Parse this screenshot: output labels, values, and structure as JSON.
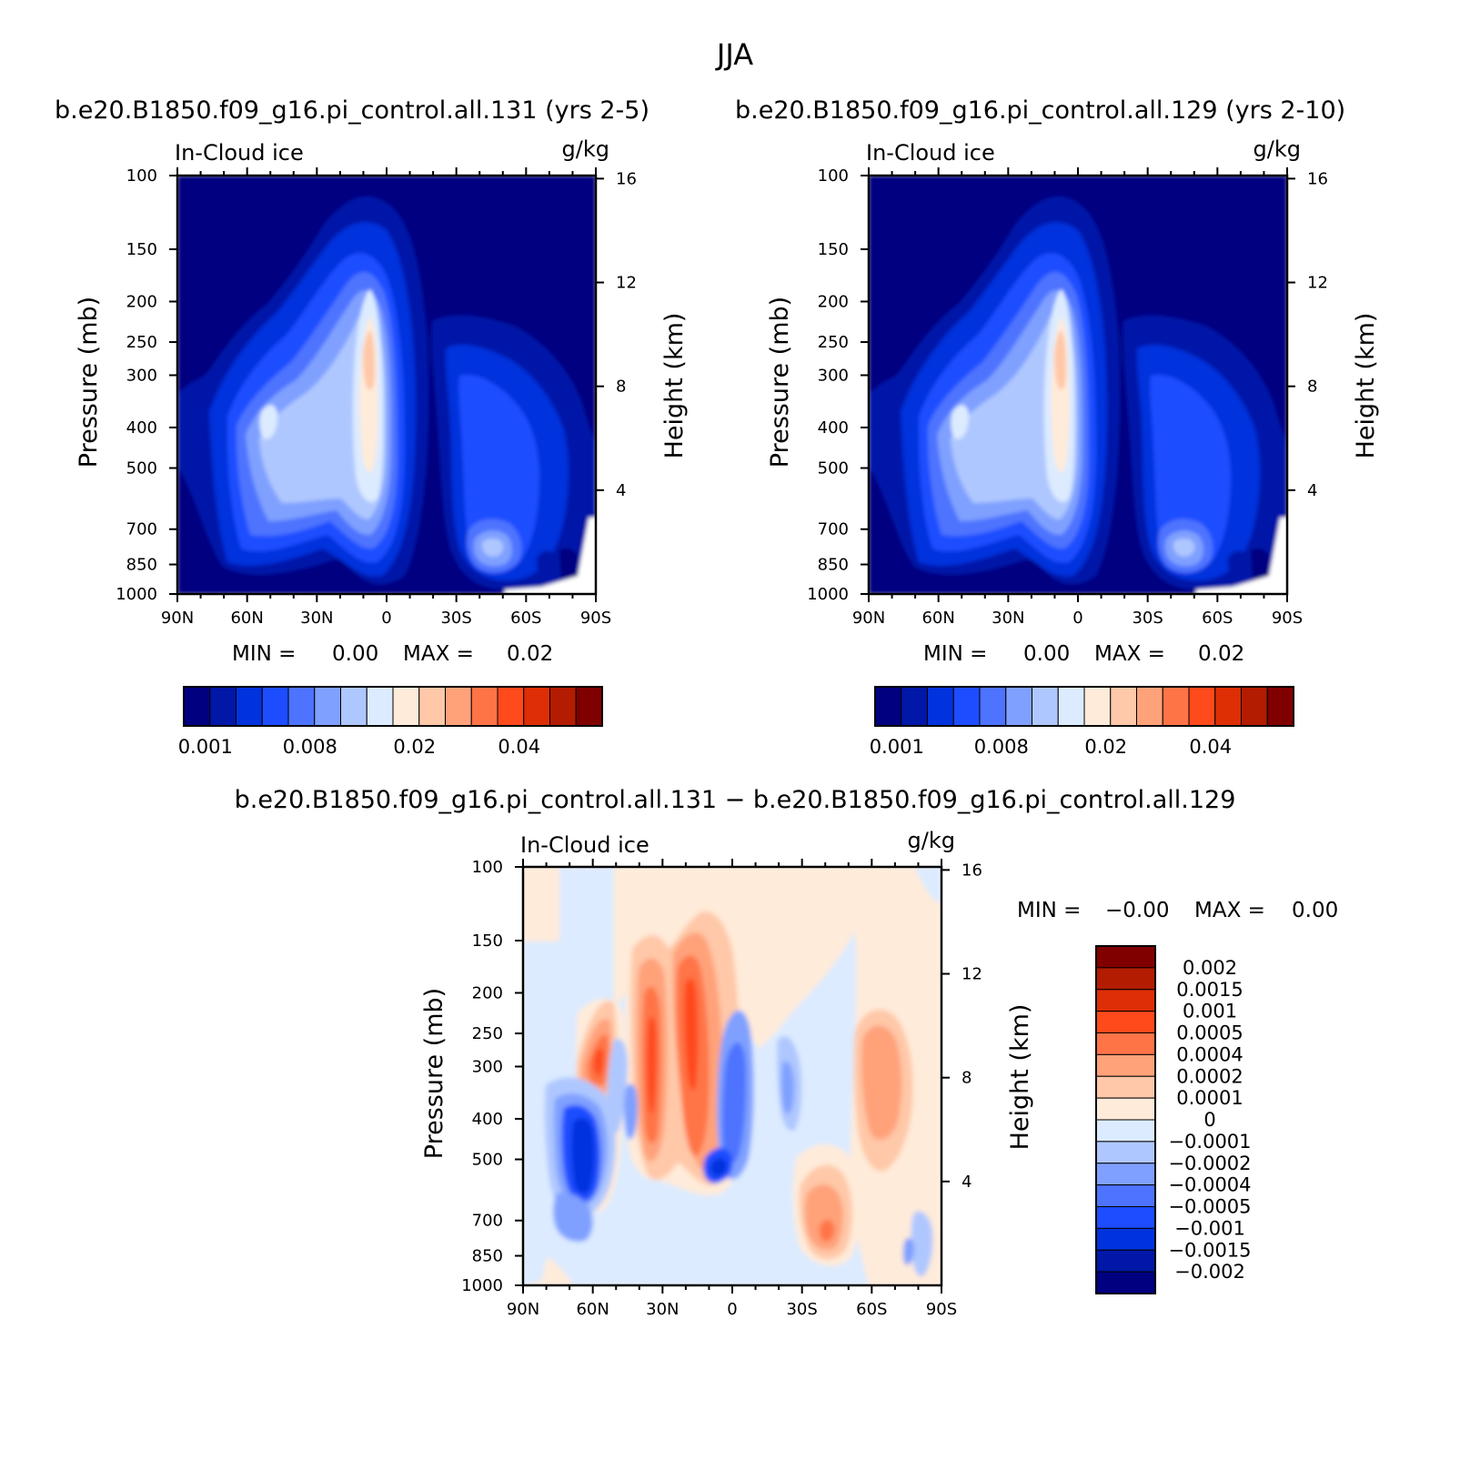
{
  "page": {
    "season_title": "JJA"
  },
  "colors": {
    "abs_levels": [
      "#000080",
      "#0017A8",
      "#0033DD",
      "#1D4DFF",
      "#4D73FF",
      "#7FA0FF",
      "#AFC7FF",
      "#DCEBFF",
      "#FFEBD9",
      "#FFC8A8",
      "#FFA27A",
      "#FF7447",
      "#FF4A1C",
      "#DD2E05",
      "#B31C00",
      "#800000"
    ],
    "diff_levels": [
      "#000080",
      "#0017A8",
      "#0033DD",
      "#1D4DFF",
      "#4D73FF",
      "#7FA0FF",
      "#AFC7FF",
      "#DCEBFF",
      "#FFEBD9",
      "#FFC8A8",
      "#FFA27A",
      "#FF7447",
      "#FF4A1C",
      "#DD2E05",
      "#B31C00",
      "#800000"
    ]
  },
  "chart_data": [
    {
      "type": "heatmap",
      "title": "b.e20.B1850.f09_g16.pi_control.all.131 (yrs 2-5)",
      "subtitle_left": "In-Cloud ice",
      "subtitle_right": "g/kg",
      "xlabel": "",
      "ylabel": "Pressure (mb)",
      "ylabel_right": "Height (km)",
      "x_ticks": [
        "90N",
        "60N",
        "30N",
        "0",
        "30S",
        "60S",
        "90S"
      ],
      "y_ticks": [
        "100",
        "150",
        "200",
        "250",
        "300",
        "400",
        "500",
        "700",
        "850",
        "1000"
      ],
      "y_right_ticks": [
        "16",
        "12",
        "8",
        "4"
      ],
      "min_label": "MIN =",
      "min_value": "0.00",
      "max_label": "MAX =",
      "max_value": "0.02",
      "colorbar_labels": [
        "0.001",
        "0.008",
        "0.02",
        "0.04"
      ]
    },
    {
      "type": "heatmap",
      "title": "b.e20.B1850.f09_g16.pi_control.all.129 (yrs 2-10)",
      "subtitle_left": "In-Cloud ice",
      "subtitle_right": "g/kg",
      "xlabel": "",
      "ylabel": "Pressure (mb)",
      "ylabel_right": "Height (km)",
      "x_ticks": [
        "90N",
        "60N",
        "30N",
        "0",
        "30S",
        "60S",
        "90S"
      ],
      "y_ticks": [
        "100",
        "150",
        "200",
        "250",
        "300",
        "400",
        "500",
        "700",
        "850",
        "1000"
      ],
      "y_right_ticks": [
        "16",
        "12",
        "8",
        "4"
      ],
      "min_label": "MIN =",
      "min_value": "0.00",
      "max_label": "MAX =",
      "max_value": "0.02",
      "colorbar_labels": [
        "0.001",
        "0.008",
        "0.02",
        "0.04"
      ]
    },
    {
      "type": "heatmap",
      "title": "b.e20.B1850.f09_g16.pi_control.all.131 − b.e20.B1850.f09_g16.pi_control.all.129",
      "subtitle_left": "In-Cloud ice",
      "subtitle_right": "g/kg",
      "xlabel": "",
      "ylabel": "Pressure (mb)",
      "ylabel_right": "Height (km)",
      "x_ticks": [
        "90N",
        "60N",
        "30N",
        "0",
        "30S",
        "60S",
        "90S"
      ],
      "y_ticks": [
        "100",
        "150",
        "200",
        "250",
        "300",
        "400",
        "500",
        "700",
        "850",
        "1000"
      ],
      "y_right_ticks": [
        "16",
        "12",
        "8",
        "4"
      ],
      "min_label": "MIN =",
      "min_value": "−0.00",
      "max_label": "MAX =",
      "max_value": "0.00",
      "colorbar_labels": [
        "0.002",
        "0.0015",
        "0.001",
        "0.0005",
        "0.0004",
        "0.0002",
        "0.0001",
        "0",
        "−0.0001",
        "−0.0002",
        "−0.0004",
        "−0.0005",
        "−0.001",
        "−0.0015",
        "−0.002"
      ]
    }
  ]
}
